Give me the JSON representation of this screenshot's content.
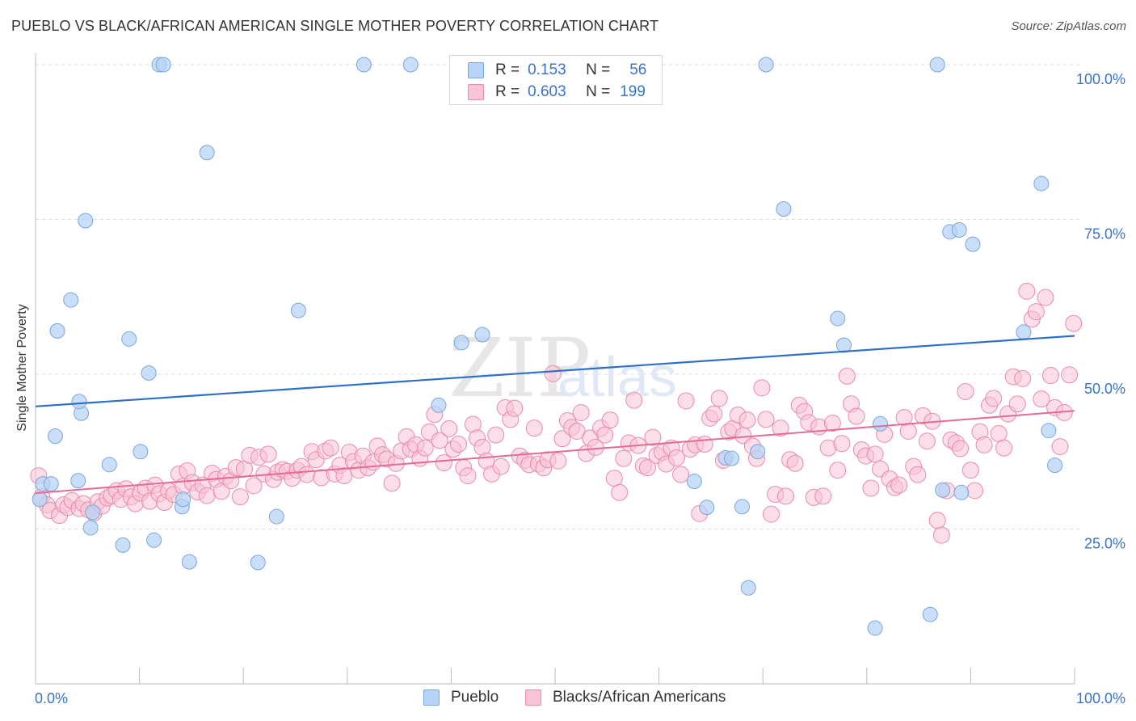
{
  "title": "PUEBLO VS BLACK/AFRICAN AMERICAN SINGLE MOTHER POVERTY CORRELATION CHART",
  "source": "Source: ZipAtlas.com",
  "watermark": {
    "zip": "ZIP",
    "atlas": "atlas"
  },
  "legend_box": [
    {
      "r_label": "R =",
      "r_value": "0.153",
      "n_label": "N =",
      "n_value": "56"
    },
    {
      "r_label": "R =",
      "r_value": "0.603",
      "n_label": "N =",
      "n_value": "199"
    }
  ],
  "colors": {
    "pueblo_fill": "#b7d3f5",
    "pueblo_stroke": "#7aa6dc",
    "pueblo_line": "#2f6fc8",
    "black_fill": "#f8c3d3",
    "black_stroke": "#ea8aa9",
    "black_line": "#e56b95",
    "axis_text": "#3a74c8",
    "grid": "#dedede"
  },
  "chart_data": {
    "type": "scatter",
    "title": "PUEBLO VS BLACK/AFRICAN AMERICAN SINGLE MOTHER POVERTY CORRELATION CHART",
    "xlabel": "",
    "ylabel": "Single Mother Poverty",
    "xlim": [
      0,
      100
    ],
    "ylim": [
      0,
      102
    ],
    "x_tick_labels": [
      "0.0%",
      "100.0%"
    ],
    "y_ticks": [
      25,
      50,
      75,
      100
    ],
    "y_tick_labels": [
      "25.0%",
      "50.0%",
      "75.0%",
      "100.0%"
    ],
    "grid": true,
    "series": [
      {
        "name": "Pueblo",
        "R": 0.153,
        "N": 56,
        "trend": {
          "x": [
            0,
            100
          ],
          "y": [
            44.8,
            56.2
          ]
        },
        "points": [
          [
            0.7,
            32.3
          ],
          [
            0.4,
            29.8
          ],
          [
            1.5,
            32.3
          ],
          [
            1.9,
            40.0
          ],
          [
            2.1,
            57.0
          ],
          [
            3.4,
            62.0
          ],
          [
            4.1,
            32.8
          ],
          [
            4.4,
            43.7
          ],
          [
            4.2,
            45.6
          ],
          [
            4.8,
            74.8
          ],
          [
            5.3,
            25.2
          ],
          [
            5.5,
            27.7
          ],
          [
            7.1,
            35.4
          ],
          [
            8.4,
            22.4
          ],
          [
            9.0,
            55.7
          ],
          [
            10.1,
            37.5
          ],
          [
            10.9,
            50.2
          ],
          [
            11.4,
            23.2
          ],
          [
            11.9,
            100
          ],
          [
            12.3,
            100
          ],
          [
            14.1,
            28.6
          ],
          [
            14.2,
            29.8
          ],
          [
            14.8,
            19.7
          ],
          [
            16.5,
            85.8
          ],
          [
            21.4,
            19.6
          ],
          [
            23.2,
            27.0
          ],
          [
            25.3,
            60.3
          ],
          [
            31.6,
            100
          ],
          [
            36.1,
            100
          ],
          [
            38.8,
            45.0
          ],
          [
            41.0,
            55.1
          ],
          [
            43.0,
            56.4
          ],
          [
            63.4,
            32.7
          ],
          [
            64.6,
            28.5
          ],
          [
            66.4,
            36.5
          ],
          [
            67.0,
            36.4
          ],
          [
            68.0,
            28.6
          ],
          [
            68.6,
            15.5
          ],
          [
            69.5,
            37.5
          ],
          [
            70.3,
            100
          ],
          [
            72.0,
            76.7
          ],
          [
            77.2,
            59.0
          ],
          [
            77.8,
            54.7
          ],
          [
            80.8,
            9.0
          ],
          [
            81.3,
            42.0
          ],
          [
            86.1,
            11.2
          ],
          [
            86.8,
            100
          ],
          [
            88.0,
            73.0
          ],
          [
            88.9,
            73.3
          ],
          [
            90.2,
            71.0
          ],
          [
            87.3,
            31.3
          ],
          [
            89.1,
            30.9
          ],
          [
            95.1,
            56.8
          ],
          [
            96.8,
            80.8
          ],
          [
            97.5,
            40.9
          ],
          [
            98.1,
            35.3
          ]
        ]
      },
      {
        "name": "Blacks/African Americans",
        "R": 0.603,
        "N": 199,
        "trend": {
          "x": [
            0,
            100
          ],
          "y": [
            30.8,
            44.1
          ]
        },
        "points": [
          [
            0.3,
            33.6
          ],
          [
            0.6,
            30.2
          ],
          [
            1.1,
            28.9
          ],
          [
            1.4,
            28.0
          ],
          [
            2.3,
            27.2
          ],
          [
            2.7,
            28.9
          ],
          [
            3.1,
            28.5
          ],
          [
            3.5,
            29.6
          ],
          [
            4.2,
            28.3
          ],
          [
            4.6,
            29.1
          ],
          [
            5.1,
            28.1
          ],
          [
            5.6,
            27.6
          ],
          [
            6.0,
            29.4
          ],
          [
            6.4,
            28.7
          ],
          [
            6.9,
            30.0
          ],
          [
            7.3,
            30.4
          ],
          [
            7.8,
            31.2
          ],
          [
            8.2,
            29.8
          ],
          [
            8.7,
            31.5
          ],
          [
            9.2,
            30.2
          ],
          [
            9.6,
            29.1
          ],
          [
            10.1,
            30.8
          ],
          [
            10.6,
            31.6
          ],
          [
            11.0,
            29.5
          ],
          [
            11.5,
            32.1
          ],
          [
            11.9,
            30.7
          ],
          [
            12.4,
            29.3
          ],
          [
            12.8,
            31.2
          ],
          [
            13.3,
            30.6
          ],
          [
            13.8,
            33.9
          ],
          [
            14.2,
            31.9
          ],
          [
            14.6,
            34.4
          ],
          [
            15.1,
            32.5
          ],
          [
            15.6,
            31.0
          ],
          [
            16.1,
            32.1
          ],
          [
            16.5,
            30.4
          ],
          [
            17.0,
            34.0
          ],
          [
            17.4,
            33.0
          ],
          [
            17.9,
            31.1
          ],
          [
            18.3,
            33.5
          ],
          [
            18.8,
            32.8
          ],
          [
            19.3,
            34.9
          ],
          [
            19.7,
            30.2
          ],
          [
            20.1,
            34.7
          ],
          [
            20.6,
            36.9
          ],
          [
            21.0,
            32.0
          ],
          [
            21.5,
            36.6
          ],
          [
            22.0,
            33.9
          ],
          [
            22.4,
            37.1
          ],
          [
            22.9,
            33.0
          ],
          [
            23.3,
            34.2
          ],
          [
            23.8,
            34.6
          ],
          [
            24.2,
            34.3
          ],
          [
            24.7,
            33.2
          ],
          [
            25.2,
            34.5
          ],
          [
            25.6,
            35.1
          ],
          [
            26.1,
            33.8
          ],
          [
            26.6,
            37.5
          ],
          [
            27.0,
            36.2
          ],
          [
            27.5,
            33.3
          ],
          [
            27.9,
            37.6
          ],
          [
            28.4,
            38.1
          ],
          [
            28.8,
            33.9
          ],
          [
            29.3,
            35.3
          ],
          [
            29.7,
            33.6
          ],
          [
            30.2,
            37.4
          ],
          [
            30.6,
            35.9
          ],
          [
            31.1,
            34.5
          ],
          [
            31.5,
            36.8
          ],
          [
            32.0,
            34.9
          ],
          [
            32.5,
            35.8
          ],
          [
            32.9,
            38.4
          ],
          [
            33.4,
            37.0
          ],
          [
            33.8,
            36.3
          ],
          [
            34.3,
            32.4
          ],
          [
            34.7,
            35.6
          ],
          [
            35.2,
            37.6
          ],
          [
            35.7,
            39.9
          ],
          [
            36.1,
            37.9
          ],
          [
            36.6,
            38.6
          ],
          [
            37.0,
            36.4
          ],
          [
            37.5,
            38.1
          ],
          [
            37.9,
            40.7
          ],
          [
            38.4,
            43.5
          ],
          [
            38.9,
            39.3
          ],
          [
            39.3,
            35.7
          ],
          [
            39.8,
            41.2
          ],
          [
            40.2,
            37.9
          ],
          [
            40.7,
            38.7
          ],
          [
            41.2,
            34.9
          ],
          [
            41.6,
            33.6
          ],
          [
            42.1,
            41.9
          ],
          [
            42.5,
            39.7
          ],
          [
            43.0,
            38.2
          ],
          [
            43.4,
            36.0
          ],
          [
            43.9,
            33.9
          ],
          [
            44.3,
            40.2
          ],
          [
            44.8,
            35.1
          ],
          [
            45.2,
            44.6
          ],
          [
            45.7,
            42.7
          ],
          [
            46.1,
            44.5
          ],
          [
            46.6,
            36.8
          ],
          [
            47.1,
            36.1
          ],
          [
            47.5,
            35.4
          ],
          [
            48.0,
            41.3
          ],
          [
            48.4,
            35.5
          ],
          [
            48.9,
            34.9
          ],
          [
            49.3,
            36.2
          ],
          [
            49.8,
            50.1
          ],
          [
            50.3,
            36.0
          ],
          [
            50.7,
            39.6
          ],
          [
            51.2,
            42.5
          ],
          [
            51.6,
            41.4
          ],
          [
            52.1,
            40.8
          ],
          [
            52.5,
            43.8
          ],
          [
            53.0,
            37.2
          ],
          [
            53.4,
            39.7
          ],
          [
            53.9,
            38.2
          ],
          [
            54.4,
            41.3
          ],
          [
            54.8,
            40.2
          ],
          [
            55.3,
            42.6
          ],
          [
            55.7,
            33.2
          ],
          [
            56.2,
            30.9
          ],
          [
            56.6,
            36.4
          ],
          [
            57.1,
            38.9
          ],
          [
            57.6,
            45.8
          ],
          [
            58.0,
            38.5
          ],
          [
            58.5,
            35.2
          ],
          [
            58.9,
            34.9
          ],
          [
            59.4,
            39.8
          ],
          [
            59.8,
            36.9
          ],
          [
            60.3,
            37.4
          ],
          [
            60.7,
            35.5
          ],
          [
            61.2,
            38.1
          ],
          [
            61.7,
            36.5
          ],
          [
            62.1,
            33.8
          ],
          [
            62.6,
            45.7
          ],
          [
            63.0,
            37.9
          ],
          [
            63.5,
            38.6
          ],
          [
            63.9,
            27.5
          ],
          [
            64.4,
            38.7
          ],
          [
            64.9,
            42.9
          ],
          [
            65.3,
            43.6
          ],
          [
            65.8,
            46.1
          ],
          [
            66.2,
            36.1
          ],
          [
            66.7,
            40.7
          ],
          [
            67.1,
            41.2
          ],
          [
            67.6,
            43.4
          ],
          [
            68.1,
            40.1
          ],
          [
            68.5,
            42.6
          ],
          [
            69.0,
            38.4
          ],
          [
            69.4,
            36.4
          ],
          [
            69.9,
            47.8
          ],
          [
            70.3,
            42.7
          ],
          [
            70.8,
            27.4
          ],
          [
            71.2,
            30.6
          ],
          [
            71.7,
            41.3
          ],
          [
            72.2,
            30.3
          ],
          [
            72.6,
            36.2
          ],
          [
            73.1,
            35.6
          ],
          [
            73.5,
            45.0
          ],
          [
            74.0,
            44.0
          ],
          [
            74.4,
            42.2
          ],
          [
            74.9,
            30.1
          ],
          [
            75.4,
            41.5
          ],
          [
            75.8,
            30.3
          ],
          [
            76.3,
            38.1
          ],
          [
            76.7,
            42.1
          ],
          [
            77.2,
            34.5
          ],
          [
            77.6,
            38.8
          ],
          [
            78.1,
            49.7
          ],
          [
            78.5,
            45.2
          ],
          [
            79.0,
            43.2
          ],
          [
            79.5,
            37.8
          ],
          [
            79.9,
            36.8
          ],
          [
            80.4,
            31.6
          ],
          [
            80.8,
            37.1
          ],
          [
            81.3,
            34.7
          ],
          [
            81.7,
            40.3
          ],
          [
            82.2,
            33.1
          ],
          [
            82.7,
            31.7
          ],
          [
            83.1,
            32.1
          ],
          [
            83.6,
            43.0
          ],
          [
            84.0,
            40.8
          ],
          [
            84.5,
            35.1
          ],
          [
            84.9,
            33.8
          ],
          [
            85.4,
            43.3
          ],
          [
            85.8,
            39.2
          ],
          [
            86.3,
            42.4
          ],
          [
            86.8,
            26.4
          ],
          [
            87.2,
            24.0
          ],
          [
            87.7,
            31.2
          ],
          [
            88.1,
            39.4
          ],
          [
            88.6,
            38.9
          ],
          [
            89.0,
            38.0
          ],
          [
            89.5,
            47.2
          ],
          [
            90.0,
            34.5
          ],
          [
            90.4,
            31.2
          ],
          [
            90.9,
            40.7
          ],
          [
            91.3,
            38.6
          ],
          [
            91.8,
            45.0
          ],
          [
            92.2,
            46.1
          ],
          [
            92.7,
            40.4
          ],
          [
            93.2,
            38.1
          ],
          [
            93.6,
            43.6
          ],
          [
            94.1,
            49.6
          ],
          [
            94.5,
            45.2
          ],
          [
            95.0,
            49.3
          ],
          [
            95.4,
            63.4
          ],
          [
            95.9,
            58.9
          ],
          [
            96.3,
            60.1
          ],
          [
            96.8,
            46.0
          ],
          [
            97.2,
            62.4
          ],
          [
            97.7,
            49.8
          ],
          [
            98.1,
            44.6
          ],
          [
            98.6,
            38.3
          ],
          [
            99.0,
            43.8
          ],
          [
            99.5,
            49.9
          ],
          [
            99.9,
            58.2
          ]
        ]
      }
    ]
  },
  "bottom_legend": [
    {
      "label": "Pueblo"
    },
    {
      "label": "Blacks/African Americans"
    }
  ]
}
